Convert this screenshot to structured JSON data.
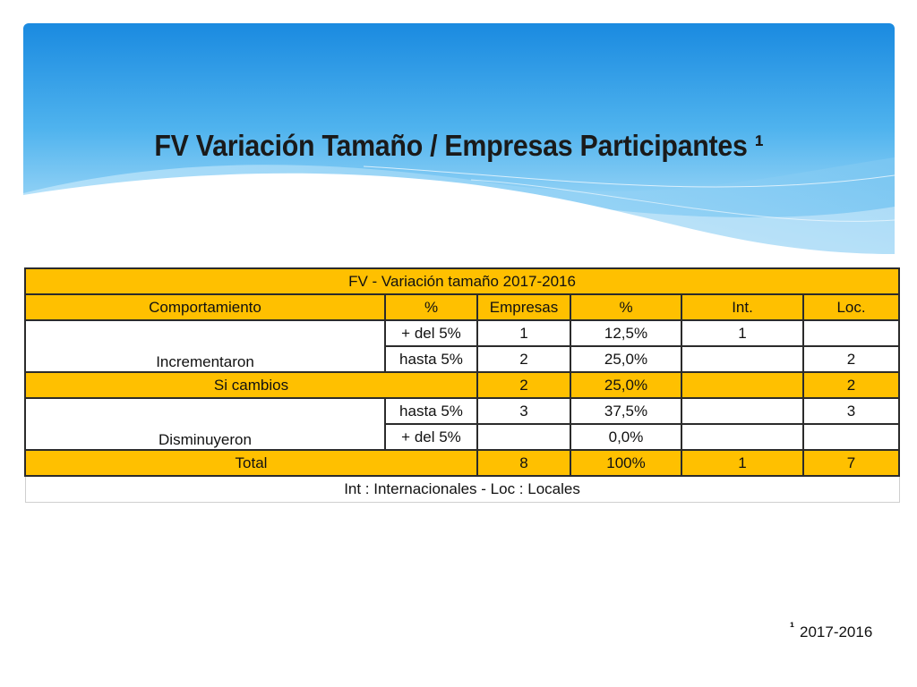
{
  "title": "FV Variación Tamaño / Empresas Participantes ¹",
  "table": {
    "caption": "FV - Variación tamaño 2017-2016",
    "headers": [
      "Comportamiento",
      "%",
      "Empresas",
      "%",
      "Int.",
      "Loc."
    ],
    "groups": {
      "incrementaron": {
        "label": "Incrementaron",
        "rows": [
          {
            "range": "+ del 5%",
            "empresas": "1",
            "pct": "12,5%",
            "int": "1",
            "loc": ""
          },
          {
            "range": "hasta 5%",
            "empresas": "2",
            "pct": "25,0%",
            "int": "",
            "loc": "2"
          }
        ]
      },
      "sin_cambios": {
        "label": "Si cambios",
        "empresas": "2",
        "pct": "25,0%",
        "int": "",
        "loc": "2"
      },
      "disminuyeron": {
        "label": "Disminuyeron",
        "rows": [
          {
            "range": "hasta 5%",
            "empresas": "3",
            "pct": "37,5%",
            "int": "",
            "loc": "3"
          },
          {
            "range": "+ del 5%",
            "empresas": "",
            "pct": "0,0%",
            "int": "",
            "loc": ""
          }
        ]
      },
      "total": {
        "label": "Total",
        "empresas": "8",
        "pct": "100%",
        "int": "1",
        "loc": "7"
      }
    },
    "footnote": "Int : Internacionales - Loc : Locales"
  },
  "note": {
    "marker": "¹",
    "text": "2017-2016"
  },
  "colors": {
    "header_blue": "#1e90e6",
    "table_yellow": "#ffc000"
  }
}
